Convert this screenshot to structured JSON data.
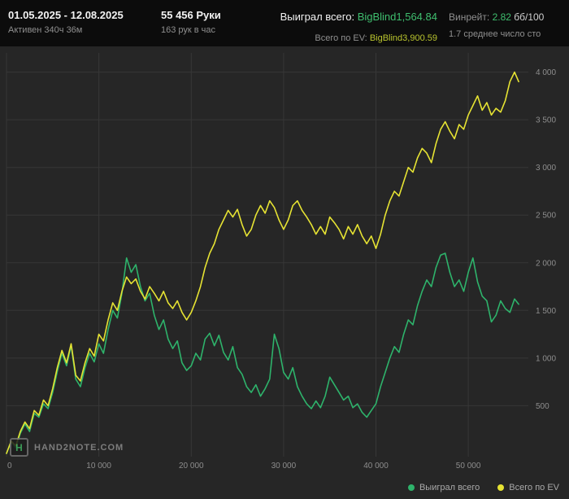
{
  "header": {
    "date_range": "01.05.2025 - 12.08.2025",
    "active_time": "Активен 340ч 36м",
    "hands_total": "55 456 Руки",
    "hands_per_hour": "163 рук в час",
    "won_label": "Выиграл всего: ",
    "won_value": "BigBlind1,564.84",
    "ev_label": "Всего по EV: ",
    "ev_value": "BigBlind3,900.59",
    "winrate_label": "Винрейт: ",
    "winrate_value": "2.82",
    "winrate_unit": " бб/100",
    "avg_tables": "1.7 среднее число сто"
  },
  "logo": {
    "letter": "H",
    "text": "HAND2NOTE.COM"
  },
  "colors": {
    "won_line": "#2eb36b",
    "ev_line": "#e6e333",
    "grid": "#373737",
    "background": "#262626",
    "header_background": "#0c0c0c"
  },
  "chart_data": {
    "type": "line",
    "title": "",
    "xlabel": "",
    "ylabel": "",
    "xlim": [
      0,
      56500
    ],
    "ylim": [
      0,
      4150
    ],
    "x_step": 500,
    "x_end": 55456,
    "grid": true,
    "legend_position": "bottom-right",
    "x_ticks": [
      0,
      10000,
      20000,
      30000,
      40000,
      50000
    ],
    "x_tick_labels": [
      "0",
      "10 000",
      "20 000",
      "30 000",
      "40 000",
      "50 000"
    ],
    "y_ticks": [
      500,
      1000,
      1500,
      2000,
      2500,
      3000,
      3500,
      4000
    ],
    "y_tick_labels": [
      "500",
      "1 000",
      "1 500",
      "2 000",
      "2 500",
      "3 000",
      "3 500",
      "4 000"
    ],
    "series": [
      {
        "name": "Выиграл всего",
        "color": "#2eb36b",
        "final_value": 1564.84,
        "values": [
          0,
          120,
          60,
          210,
          310,
          230,
          420,
          380,
          520,
          470,
          640,
          860,
          1050,
          920,
          1130,
          780,
          700,
          900,
          1050,
          960,
          1150,
          1050,
          1300,
          1500,
          1420,
          1680,
          2050,
          1900,
          1980,
          1750,
          1600,
          1680,
          1450,
          1300,
          1400,
          1200,
          1100,
          1180,
          950,
          870,
          920,
          1050,
          980,
          1200,
          1260,
          1130,
          1240,
          1060,
          980,
          1120,
          900,
          830,
          700,
          640,
          720,
          600,
          680,
          780,
          1250,
          1100,
          850,
          780,
          900,
          700,
          600,
          520,
          470,
          550,
          480,
          600,
          800,
          720,
          640,
          560,
          600,
          480,
          520,
          430,
          380,
          450,
          520,
          700,
          850,
          1000,
          1120,
          1060,
          1250,
          1400,
          1350,
          1550,
          1700,
          1820,
          1750,
          1950,
          2080,
          2100,
          1900,
          1750,
          1820,
          1700,
          1900,
          2050,
          1800,
          1650,
          1600,
          1380,
          1450,
          1600,
          1520,
          1480,
          1620,
          1564
        ]
      },
      {
        "name": "Всего по EV",
        "color": "#e6e333",
        "final_value": 3900.59,
        "values": [
          0,
          130,
          80,
          230,
          330,
          260,
          450,
          400,
          560,
          500,
          680,
          900,
          1080,
          950,
          1150,
          820,
          760,
          950,
          1100,
          1020,
          1250,
          1180,
          1400,
          1580,
          1500,
          1700,
          1850,
          1780,
          1830,
          1700,
          1620,
          1750,
          1680,
          1600,
          1700,
          1580,
          1520,
          1600,
          1480,
          1400,
          1480,
          1600,
          1750,
          1950,
          2100,
          2200,
          2350,
          2450,
          2550,
          2480,
          2560,
          2400,
          2280,
          2350,
          2500,
          2600,
          2520,
          2650,
          2580,
          2450,
          2350,
          2450,
          2600,
          2650,
          2550,
          2480,
          2400,
          2300,
          2380,
          2300,
          2480,
          2420,
          2350,
          2250,
          2380,
          2300,
          2400,
          2280,
          2200,
          2280,
          2150,
          2300,
          2500,
          2650,
          2750,
          2700,
          2850,
          3000,
          2950,
          3100,
          3200,
          3150,
          3050,
          3250,
          3400,
          3480,
          3380,
          3300,
          3450,
          3400,
          3550,
          3650,
          3750,
          3600,
          3680,
          3550,
          3620,
          3580,
          3700,
          3900,
          4000,
          3900
        ]
      }
    ]
  }
}
